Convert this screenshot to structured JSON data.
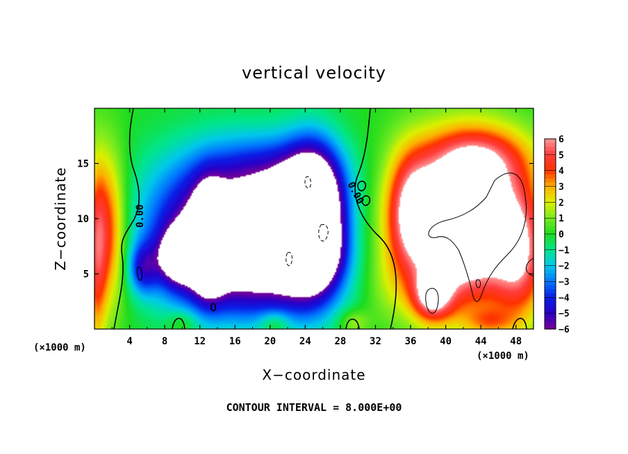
{
  "chart_data": {
    "type": "heatmap",
    "title": "vertical velocity",
    "xlabel": "X−coordinate",
    "ylabel": "Z−coordinate",
    "x_unit_left": "(×1000 m)",
    "x_unit_right": "(×1000 m)",
    "xlim": [
      0,
      50
    ],
    "ylim": [
      0,
      20
    ],
    "x_ticks": [
      4,
      8,
      12,
      16,
      20,
      24,
      28,
      32,
      36,
      40,
      44,
      48
    ],
    "y_ticks": [
      5,
      10,
      15
    ],
    "colorbar": {
      "range": [
        -6,
        6
      ],
      "tick_values": [
        6,
        5,
        4,
        3,
        2,
        1,
        0,
        -1,
        -2,
        -3,
        -4,
        -5,
        -6
      ],
      "tick_labels": [
        "6",
        "5",
        "4",
        "3",
        "2",
        "1",
        "0",
        "−1",
        "−2",
        "−3",
        "−4",
        "−5",
        "−6"
      ],
      "above_max_color": "#ffffff",
      "below_min_color": "#ffffff"
    },
    "contour_label": "0.00",
    "footnote": "CONTOUR INTERVAL = 8.000E+00",
    "field_features": [
      {
        "x": 1.5,
        "z": 9,
        "w": 4.5,
        "sx": 1.5,
        "sz": 5
      },
      {
        "x": 0.2,
        "z": 6,
        "w": 3,
        "sx": 0.8,
        "sz": 6
      },
      {
        "x": 16,
        "z": 10,
        "w": -5.2,
        "sx": 7,
        "sz": 4.5
      },
      {
        "x": 12,
        "z": 7,
        "w": -3.5,
        "sx": 4,
        "sz": 3.5
      },
      {
        "x": 22,
        "z": 6,
        "w": -4.5,
        "sx": 4.5,
        "sz": 3.5
      },
      {
        "x": 13,
        "z": 8,
        "w": -6.8,
        "sx": 1.2,
        "sz": 3
      },
      {
        "x": 11.2,
        "z": 7,
        "w": -5.8,
        "sx": 1.4,
        "sz": 1.5
      },
      {
        "x": 9,
        "z": 6.5,
        "w": -3.5,
        "sx": 1.3,
        "sz": 1.6
      },
      {
        "x": 5.5,
        "z": 5.5,
        "w": -3.2,
        "sx": 1.2,
        "sz": 1.6
      },
      {
        "x": 25,
        "z": 10,
        "w": -9,
        "sx": 2.2,
        "sz": 4.2
      },
      {
        "x": 24,
        "z": 6.8,
        "w": -5,
        "sx": 2,
        "sz": 1.5
      },
      {
        "x": 23,
        "z": 12,
        "w": -2,
        "sx": 3,
        "sz": 3
      },
      {
        "x": 42,
        "z": 9.5,
        "w": 10.5,
        "sx": 5,
        "sz": 4.8
      },
      {
        "x": 38.5,
        "z": 3,
        "w": 5,
        "sx": 1.6,
        "sz": 1.6
      },
      {
        "x": 44,
        "z": 15.5,
        "w": 3,
        "sx": 4,
        "sz": 2
      },
      {
        "x": 36,
        "z": 11,
        "w": 3.5,
        "sx": 1.8,
        "sz": 3.5
      },
      {
        "x": 48.5,
        "z": 6,
        "w": 3.5,
        "sx": 2,
        "sz": 4
      },
      {
        "x": 33.5,
        "z": 4,
        "w": 0.8,
        "sx": 2,
        "sz": 2.5
      },
      {
        "x": 29.5,
        "z": 0.6,
        "w": 1.6,
        "sx": 1.2,
        "sz": 0.8
      },
      {
        "x": 20.5,
        "z": 0.5,
        "w": 1.6,
        "sx": 1.2,
        "sz": 0.8
      },
      {
        "x": 10,
        "z": 0.6,
        "w": 1.2,
        "sx": 1.2,
        "sz": 0.8
      },
      {
        "x": 45,
        "z": 0.6,
        "w": 2,
        "sx": 2,
        "sz": 0.9
      },
      {
        "x": 20,
        "z": 14,
        "w": -2,
        "sx": 6,
        "sz": 2.5
      },
      {
        "x": 16,
        "z": 3.5,
        "w": -1.5,
        "sx": 5,
        "sz": 2.5
      }
    ]
  }
}
